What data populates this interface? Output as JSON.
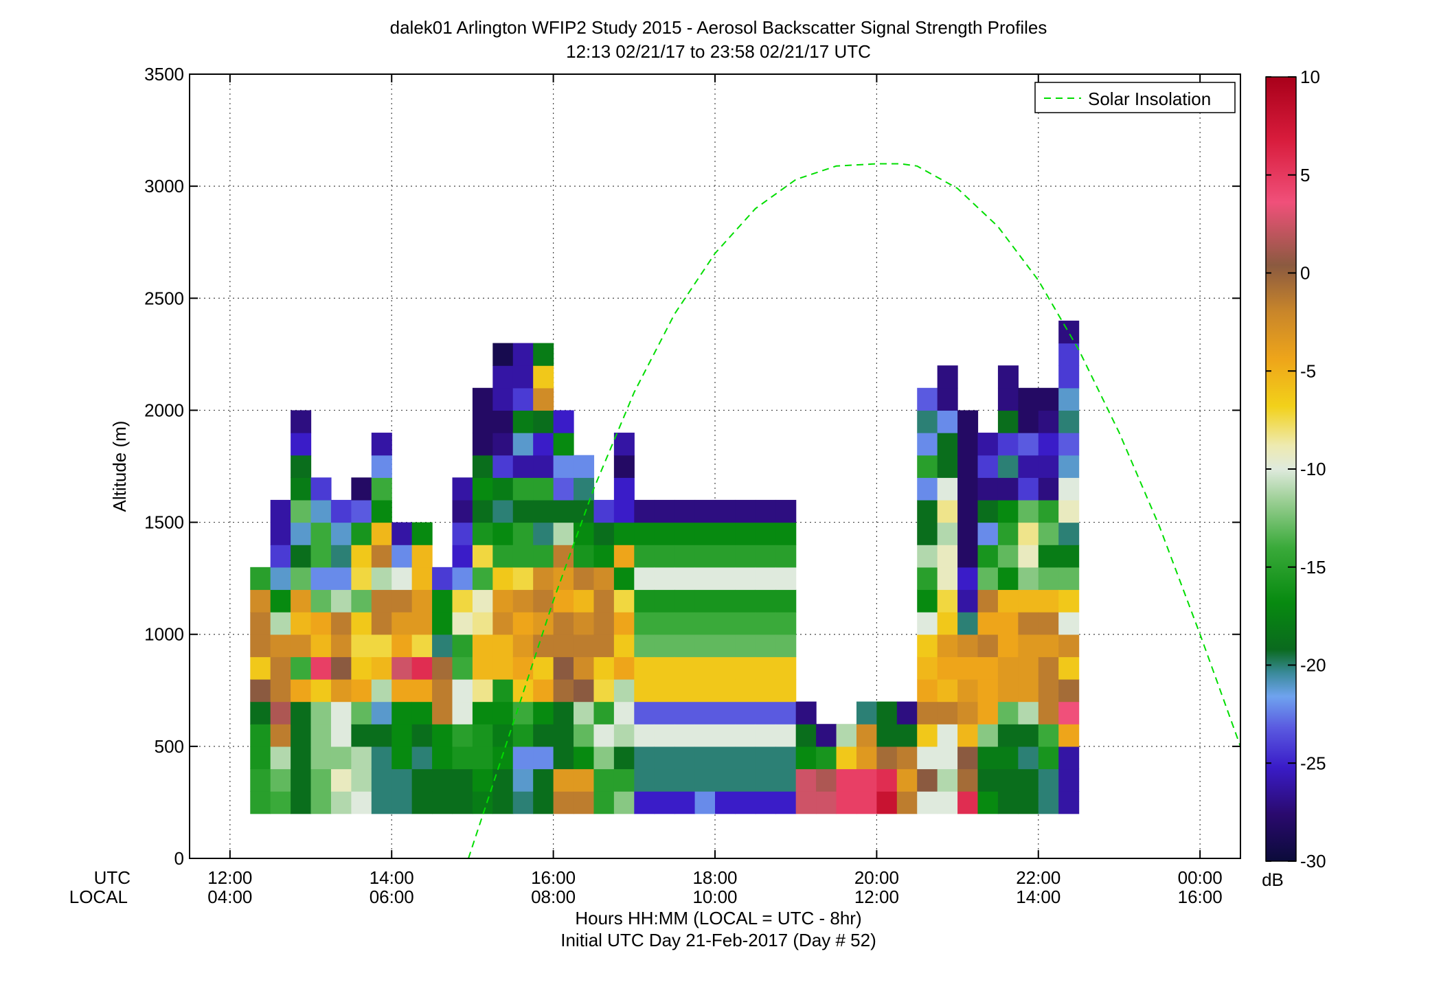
{
  "chart_data": {
    "type": "heatmap",
    "title": "dalek01 Arlington WFIP2 Study 2015 - Aerosol Backscatter Signal Strength Profiles",
    "subtitle": "12:13 02/21/17 to 23:58 02/21/17  UTC",
    "ylabel": "Altitude (m)",
    "xlabel": "Hours HH:MM  (LOCAL = UTC - 8hr)",
    "xlabel2": "Initial UTC Day 21-Feb-2017 (Day # 52)",
    "xrow_label_utc": "UTC",
    "xrow_label_local": "LOCAL",
    "x_unit": "hours UTC since 00:00 02/21/17",
    "xlim": [
      11.5,
      24.5
    ],
    "ylim": [
      0,
      3500
    ],
    "grid": true,
    "xticks": [
      {
        "value": 12,
        "utc": "12:00",
        "local": "04:00"
      },
      {
        "value": 14,
        "utc": "14:00",
        "local": "06:00"
      },
      {
        "value": 16,
        "utc": "16:00",
        "local": "08:00"
      },
      {
        "value": 18,
        "utc": "18:00",
        "local": "10:00"
      },
      {
        "value": 20,
        "utc": "20:00",
        "local": "12:00"
      },
      {
        "value": 22,
        "utc": "22:00",
        "local": "14:00"
      },
      {
        "value": 24,
        "utc": "00:00",
        "local": "16:00"
      }
    ],
    "yticks": [
      0,
      500,
      1000,
      1500,
      2000,
      2500,
      3000,
      3500
    ],
    "colorbar": {
      "label": "dB",
      "min": -30,
      "max": 10,
      "ticks": [
        10,
        5,
        0,
        -5,
        -10,
        -15,
        -20,
        -25,
        -30
      ]
    },
    "legend": {
      "position": "top-right",
      "entries": [
        "Solar Insolation"
      ]
    },
    "solar_insolation_curve": {
      "x": [
        14.95,
        15.5,
        16,
        16.5,
        17,
        17.5,
        18,
        18.5,
        19,
        19.5,
        20,
        20.3,
        20.5,
        21,
        21.5,
        22,
        22.5,
        23,
        23.5,
        24,
        24.5
      ],
      "y": [
        0,
        600,
        1150,
        1650,
        2080,
        2430,
        2700,
        2900,
        3030,
        3090,
        3100,
        3100,
        3090,
        2990,
        2820,
        2580,
        2270,
        1900,
        1480,
        1000,
        500
      ],
      "color": "#00dd00"
    },
    "cells": {
      "time_start": 12.25,
      "time_step": 0.25,
      "alt_start": 200,
      "alt_step": 100,
      "columns": [
        [
          -15,
          -15,
          -16,
          -16,
          -19,
          1,
          -6,
          -1,
          -1,
          -2,
          -15
        ],
        [
          -14,
          -13,
          -11,
          -1,
          2,
          -1,
          -1,
          -2,
          -11,
          -17,
          -21,
          -24,
          -26,
          -26
        ],
        [
          -19,
          -19,
          -19,
          -19,
          -19,
          -4,
          -14,
          -2,
          -5,
          -3,
          -13,
          -19,
          -21,
          -13,
          -18,
          -19,
          -25,
          -27
        ],
        [
          -13,
          -13,
          -12,
          -12,
          -12,
          -6,
          5,
          -5,
          -4,
          -13,
          -22,
          -14,
          -14,
          -21,
          -24
        ],
        [
          -11,
          -9,
          -12,
          -10,
          -10,
          -3,
          1,
          -2,
          -1,
          -11,
          -22,
          -20,
          -21,
          -24
        ],
        [
          -10,
          -11,
          -11,
          -19,
          -13,
          -4,
          -6,
          -7,
          -6,
          -13,
          -7,
          -6,
          -16,
          -23,
          -28
        ],
        [
          -20,
          -20,
          -20,
          -19,
          -21,
          -11,
          -5,
          -7,
          -1,
          -1,
          -11,
          -1,
          -5,
          -17,
          -14,
          -22,
          -26
        ],
        [
          -20,
          -20,
          -17,
          -17,
          -17,
          -4,
          3,
          -4,
          -3,
          -1,
          -10,
          -22,
          -26
        ],
        [
          -19,
          -19,
          -20,
          -19,
          -17,
          -4,
          6,
          -7,
          -3,
          -3,
          -5,
          -5,
          -17
        ],
        [
          -19,
          -19,
          -17,
          -17,
          -1,
          -1,
          0,
          -20,
          -17,
          -17,
          -24
        ],
        [
          -19,
          -19,
          -16,
          -15,
          -10,
          -10,
          -14,
          -15,
          -9,
          -7,
          -22,
          -25,
          -24,
          -27,
          -26
        ],
        [
          -18,
          -17,
          -16,
          -16,
          -17,
          -8,
          -5,
          -5,
          -8,
          -9,
          -14,
          -7,
          -16,
          -19,
          -17,
          -19,
          -28,
          -28,
          -28
        ],
        [
          -19,
          -19,
          -17,
          -18,
          -17,
          -16,
          -5,
          -5,
          -2,
          -3,
          -6,
          -15,
          -17,
          -20,
          -18,
          -24,
          -27,
          -28,
          -26,
          -26,
          -29
        ],
        [
          -20,
          -21,
          -22,
          -16,
          -14,
          -6,
          -4,
          -3,
          -4,
          -2,
          -7,
          -15,
          -15,
          -19,
          -15,
          -26,
          -21,
          -18,
          -24,
          -26,
          -26
        ],
        [
          -19,
          -19,
          -22,
          -19,
          -17,
          -4,
          -6,
          -1,
          -3,
          -1,
          -2,
          -15,
          -20,
          -19,
          -15,
          -26,
          -25,
          -19,
          -2,
          -6,
          -18
        ],
        [
          -1,
          -3,
          -19,
          -19,
          -19,
          0,
          1,
          -1,
          -1,
          -4,
          -3,
          -1,
          -11,
          -19,
          -23,
          -22,
          -17,
          -25
        ],
        [
          -1,
          -3,
          -17,
          -13,
          -11,
          1,
          -2,
          -1,
          -2,
          -5,
          -1,
          -16,
          -17,
          -19,
          -20,
          -22
        ],
        [
          -15,
          -15,
          -12,
          -10,
          -15,
          -7,
          -6,
          -1,
          -1,
          -1,
          -2,
          -17,
          -19,
          -24
        ],
        [
          -12,
          -15,
          -19,
          -11,
          -10,
          -11,
          -4,
          -6,
          -4,
          -7,
          -17,
          -4,
          -17,
          -25,
          -25,
          -28,
          -26
        ],
        [
          -25,
          -20,
          -20,
          -10,
          -23,
          -6,
          -6,
          -13,
          -14,
          -16,
          -10,
          -15,
          -17,
          -27
        ],
        [
          -25,
          -20,
          -20,
          -10,
          -23,
          -6,
          -6,
          -13,
          -14,
          -16,
          -10,
          -15,
          -17,
          -27
        ],
        [
          -25,
          -20,
          -20,
          -10,
          -23,
          -6,
          -6,
          -13,
          -14,
          -16,
          -10,
          -15,
          -17,
          -27
        ],
        [
          -22,
          -20,
          -20,
          -10,
          -23,
          -6,
          -6,
          -13,
          -14,
          -16,
          -10,
          -15,
          -17,
          -27
        ],
        [
          -25,
          -20,
          -20,
          -10,
          -23,
          -6,
          -6,
          -13,
          -14,
          -16,
          -10,
          -15,
          -17,
          -27
        ],
        [
          -25,
          -20,
          -20,
          -10,
          -23,
          -6,
          -6,
          -13,
          -14,
          -16,
          -10,
          -15,
          -17,
          -27
        ],
        [
          -25,
          -20,
          -20,
          -10,
          -23,
          -6,
          -6,
          -13,
          -14,
          -16,
          -10,
          -15,
          -17,
          -27
        ],
        [
          -25,
          -20,
          -20,
          -10,
          -23,
          -6,
          -6,
          -13,
          -14,
          -16,
          -10,
          -15,
          -17,
          -27
        ],
        [
          3,
          3,
          -17,
          -19,
          -27
        ],
        [
          3,
          2,
          -16,
          -27
        ],
        [
          5,
          5,
          -6,
          -11
        ],
        [
          5,
          5,
          -3,
          -2,
          -20
        ],
        [
          8,
          6,
          0,
          -19,
          -19
        ],
        [
          -1,
          -3,
          -1,
          -19,
          -27
        ],
        [
          -10,
          1,
          -10,
          -6,
          -1,
          -4,
          -5,
          -6,
          -10,
          -17,
          -15,
          -11,
          -19,
          -19,
          -22,
          -15,
          -22,
          -20,
          -23
        ],
        [
          -10,
          -11,
          -10,
          -10,
          -1,
          -5,
          -4,
          -3,
          -6,
          -7,
          -9,
          -9,
          -11,
          -8,
          -10,
          -19,
          -19,
          -22,
          -27,
          -27
        ],
        [
          6,
          0,
          1,
          -5,
          -2,
          -3,
          -4,
          -2,
          -20,
          -26,
          -25,
          -28,
          -28,
          -28,
          -28,
          -28,
          -28,
          -28
        ],
        [
          -17,
          -19,
          -18,
          -12,
          -4,
          -4,
          -4,
          -1,
          -4,
          -1,
          -13,
          -16,
          -22,
          -19,
          -27,
          -24,
          -26
        ],
        [
          -19,
          -19,
          -18,
          -19,
          -13,
          -3,
          -3,
          -4,
          -4,
          -5,
          -17,
          -13,
          -15,
          -17,
          -27,
          -20,
          -24,
          -19,
          -27,
          -27
        ],
        [
          -19,
          -19,
          -20,
          -19,
          -11,
          -3,
          -3,
          -3,
          -1,
          -5,
          -12,
          -9,
          -8,
          -13,
          -24,
          -26,
          -23,
          -28,
          -28
        ],
        [
          -20,
          -20,
          -16,
          -14,
          -1,
          -1,
          -1,
          -3,
          -1,
          -5,
          -13,
          -18,
          -13,
          -15,
          -27,
          -26,
          -25,
          -27,
          -28
        ],
        [
          -26,
          -26,
          -26,
          -4,
          4,
          0,
          -6,
          -2,
          -10,
          -6,
          -13,
          -18,
          -20,
          -9,
          -10,
          -21,
          -23,
          -20,
          -21,
          -24,
          -24,
          -27
        ]
      ]
    }
  }
}
